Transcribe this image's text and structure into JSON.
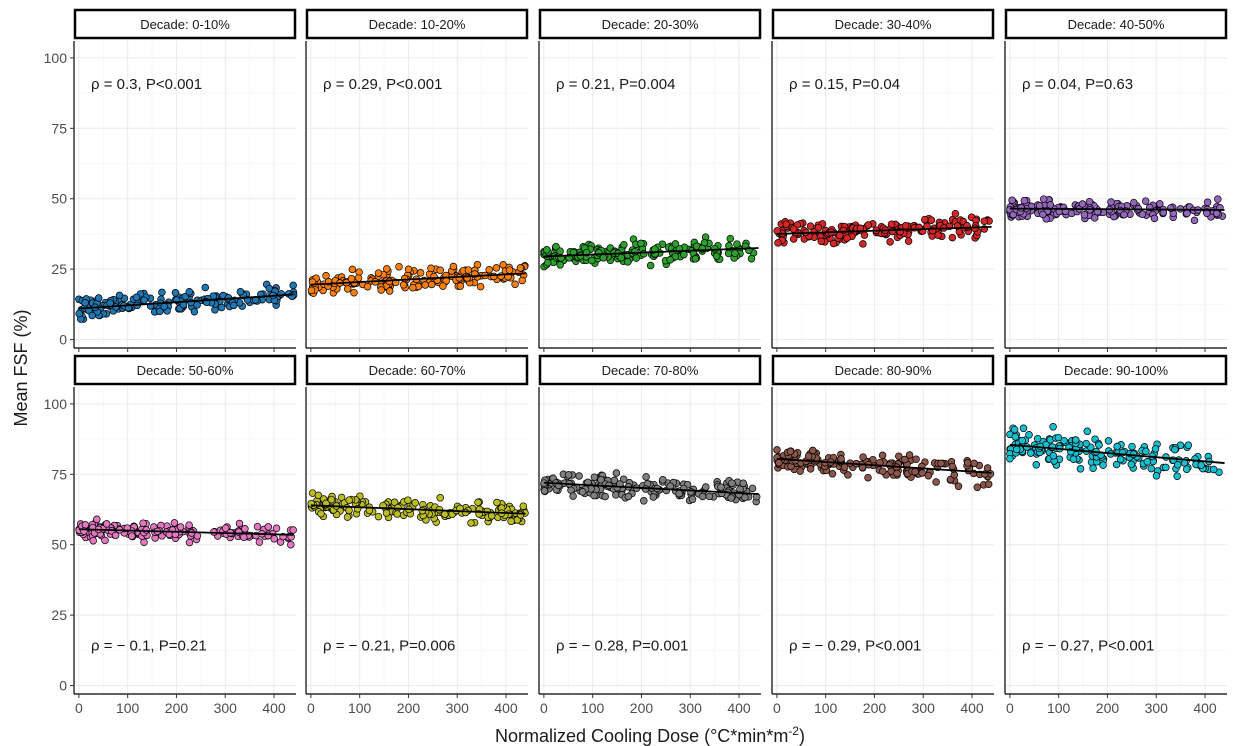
{
  "chart_data": {
    "type": "scatter",
    "xlabel": "Normalized Cooling Dose (°C*min*m",
    "xlabel_sup": "-2",
    "xlabel_end": ")",
    "ylabel": "Mean FSF (%)",
    "xlim": [
      -10,
      445
    ],
    "ylim": [
      -3,
      106
    ],
    "x_ticks": [
      0,
      100,
      200,
      300,
      400
    ],
    "y_ticks": [
      0,
      25,
      50,
      75,
      100
    ],
    "grid": true,
    "nrow": 2,
    "ncol": 5,
    "panels": [
      {
        "strip": "Decade: 0-10%",
        "annotation": "ρ = 0.3, P<0.001",
        "annotation_pos": "top",
        "color": "#1f77b4",
        "center": 13,
        "spread": 3.5,
        "trend": [
          11,
          16
        ]
      },
      {
        "strip": "Decade: 10-20%",
        "annotation": "ρ = 0.29, P<0.001",
        "annotation_pos": "top",
        "color": "#ff7f0e",
        "center": 21,
        "spread": 3.5,
        "trend": [
          19.5,
          23.5
        ]
      },
      {
        "strip": "Decade: 20-30%",
        "annotation": "ρ = 0.21, P=0.004",
        "annotation_pos": "top",
        "color": "#2ca02c",
        "center": 31,
        "spread": 3.5,
        "trend": [
          29.5,
          32.5
        ]
      },
      {
        "strip": "Decade: 30-40%",
        "annotation": "ρ = 0.15, P=0.04",
        "annotation_pos": "top",
        "color": "#d62728",
        "center": 38.5,
        "spread": 3.5,
        "trend": [
          37.5,
          40
        ]
      },
      {
        "strip": "Decade: 40-50%",
        "annotation": "ρ = 0.04, P=0.63",
        "annotation_pos": "top",
        "color": "#9467bd",
        "center": 46,
        "spread": 3,
        "trend": [
          46.5,
          46
        ]
      },
      {
        "strip": "Decade: 50-60%",
        "annotation": "ρ = − 0.1, P=0.21",
        "annotation_pos": "bottom",
        "color": "#e377c2",
        "center": 55,
        "spread": 3,
        "trend": [
          55.5,
          53.5
        ]
      },
      {
        "strip": "Decade: 60-70%",
        "annotation": "ρ = − 0.21, P=0.006",
        "annotation_pos": "bottom",
        "color": "#bcbd22",
        "center": 63,
        "spread": 3.5,
        "trend": [
          64,
          61
        ]
      },
      {
        "strip": "Decade: 70-80%",
        "annotation": "ρ = − 0.28, P=0.001",
        "annotation_pos": "bottom",
        "color": "#7f7f7f",
        "center": 70,
        "spread": 4,
        "trend": [
          72,
          68
        ]
      },
      {
        "strip": "Decade: 80-90%",
        "annotation": "ρ = − 0.29, P<0.001",
        "annotation_pos": "bottom",
        "color": "#8c564b",
        "center": 78,
        "spread": 4,
        "trend": [
          80.5,
          75.5
        ]
      },
      {
        "strip": "Decade: 90-100%",
        "annotation": "ρ = − 0.27, P<0.001",
        "annotation_pos": "bottom",
        "color": "#17becf",
        "center": 82,
        "spread": 5.5,
        "trend": [
          85.5,
          79
        ]
      }
    ]
  }
}
